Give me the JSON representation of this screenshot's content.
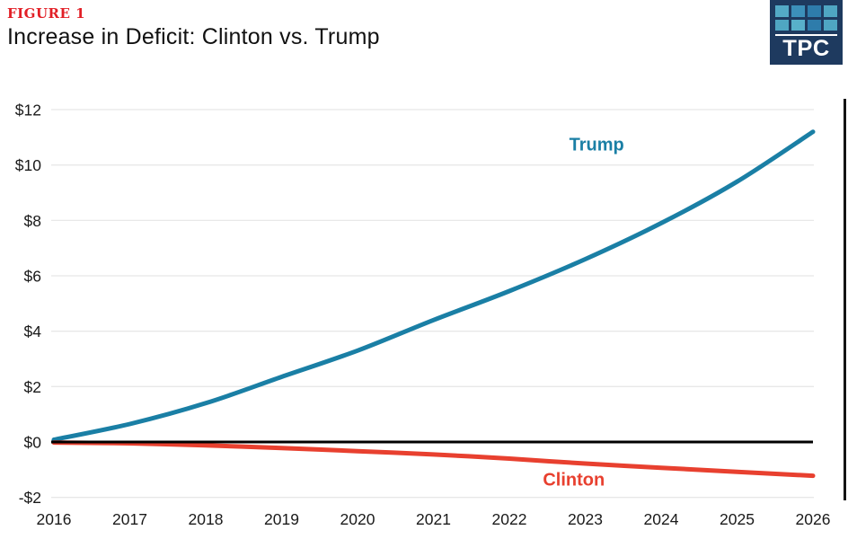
{
  "figure_label": "FIGURE 1",
  "title": "Increase in Deficit: Clinton vs. Trump",
  "logo": {
    "text": "TPC",
    "bg": "#1e3a5f",
    "square_colors": [
      "#53aac6",
      "#3c90ba",
      "#2e7cab",
      "#4fa6c2",
      "#4fa6c2",
      "#58b0ca",
      "#2e7cab",
      "#4fa6c2"
    ]
  },
  "colors": {
    "trump": "#1a7fa5",
    "clinton": "#e8402f",
    "figure_label": "#e21f26",
    "gridline": "#e8e8e8",
    "zero_line": "#000000",
    "axis_text": "#1a1a1a"
  },
  "chart_data": {
    "type": "line",
    "title": "Increase in Deficit: Clinton vs. Trump",
    "x": [
      2016,
      2017,
      2018,
      2019,
      2020,
      2021,
      2022,
      2023,
      2024,
      2025,
      2026
    ],
    "series": [
      {
        "name": "Trump",
        "color_key": "trump",
        "values": [
          0.08,
          0.65,
          1.4,
          2.35,
          3.3,
          4.4,
          5.45,
          6.6,
          7.9,
          9.4,
          11.2
        ],
        "label_anchor_year": 2023.15,
        "label_anchor_value": 10.75
      },
      {
        "name": "Clinton",
        "color_key": "clinton",
        "values": [
          -0.02,
          -0.05,
          -0.12,
          -0.22,
          -0.33,
          -0.45,
          -0.6,
          -0.78,
          -0.93,
          -1.08,
          -1.22
        ],
        "label_anchor_year": 2022.85,
        "label_anchor_value": -1.35
      }
    ],
    "yticks": [
      {
        "value": 12,
        "label": "$12"
      },
      {
        "value": 10,
        "label": "$10"
      },
      {
        "value": 8,
        "label": "$8"
      },
      {
        "value": 6,
        "label": "$6"
      },
      {
        "value": 4,
        "label": "$4"
      },
      {
        "value": 2,
        "label": "$2"
      },
      {
        "value": 0,
        "label": "$0"
      },
      {
        "value": -2,
        "label": "-$2"
      }
    ],
    "xtick_labels": [
      "2016",
      "2017",
      "2018",
      "2019",
      "2020",
      "2021",
      "2022",
      "2023",
      "2024",
      "2025",
      "2026"
    ],
    "ylim": [
      -2,
      12
    ],
    "xlim": [
      2016,
      2026
    ],
    "grid": "horizontal",
    "zero_line": true,
    "legend": "inline-labels"
  }
}
